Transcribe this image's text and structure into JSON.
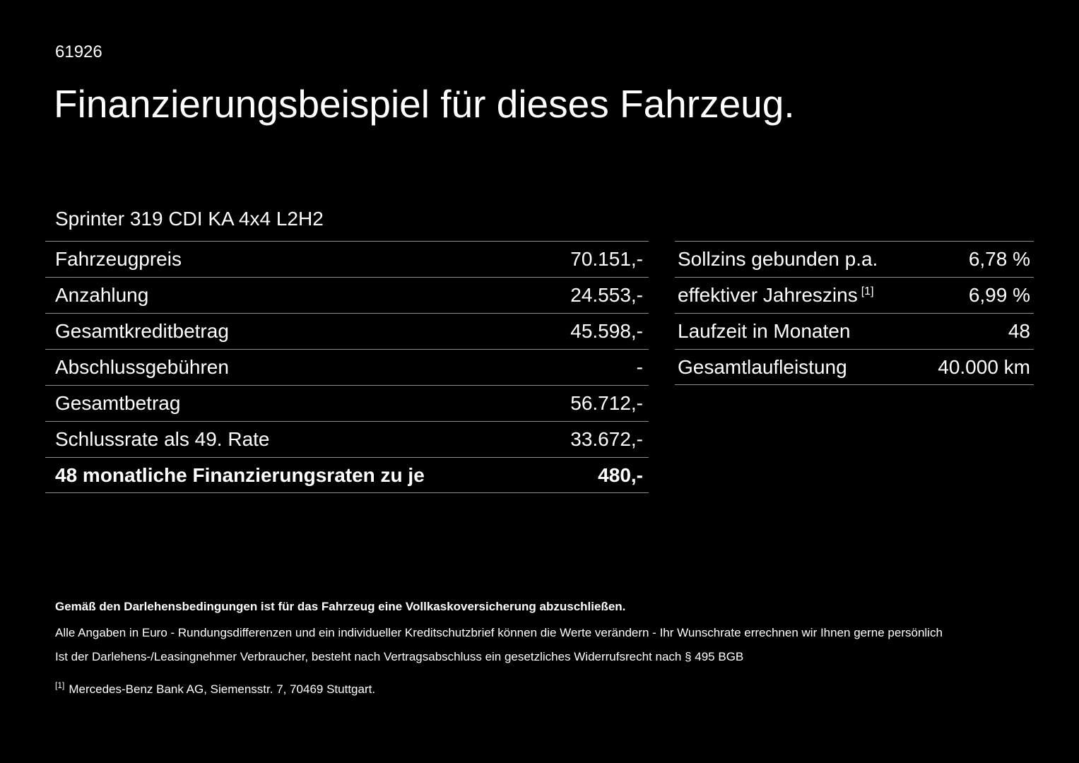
{
  "page": {
    "doc_id": "61926",
    "title": "Finanzierungsbeispiel für dieses Fahrzeug.",
    "subtitle": "Sprinter 319 CDI KA 4x4 L2H2"
  },
  "left_table": {
    "rows": [
      {
        "label": "Fahrzeugpreis",
        "value": "70.151,-"
      },
      {
        "label": "Anzahlung",
        "value": "24.553,-"
      },
      {
        "label": "Gesamtkreditbetrag",
        "value": "45.598,-"
      },
      {
        "label": "Abschlussgebühren",
        "value": "-"
      },
      {
        "label": "Gesamtbetrag",
        "value": "56.712,-"
      },
      {
        "label": "Schlussrate als 49. Rate",
        "value": "33.672,-"
      },
      {
        "label": "48 monatliche Finanzierungsraten zu je",
        "value": "480,-"
      }
    ]
  },
  "right_table": {
    "rows": [
      {
        "label": "Sollzins gebunden p.a.",
        "sup": "",
        "value": "6,78 %"
      },
      {
        "label": "effektiver Jahreszins",
        "sup": "[1]",
        "value": "6,99 %"
      },
      {
        "label": "Laufzeit in Monaten",
        "sup": "",
        "value": "48"
      },
      {
        "label": "Gesamtlaufleistung",
        "sup": "",
        "value": "40.000 km"
      }
    ]
  },
  "footer": {
    "bold_note": "Gemäß den Darlehensbedingungen ist für das Fahrzeug eine Vollkaskoversicherung abzuschließen.",
    "note1": "Alle Angaben in Euro - Rundungsdifferenzen und ein individueller Kreditschutzbrief können die Werte verändern - Ihr Wunschrate errechnen wir Ihnen gerne persönlich",
    "note2": "Ist der Darlehens-/Leasingnehmer Verbraucher, besteht nach Vertragsabschluss ein gesetzliches Widerrufsrecht nach § 495 BGB",
    "footnote_marker": "[1]",
    "footnote_text": "Mercedes-Benz Bank AG, Siemensstr. 7, 70469 Stuttgart."
  },
  "colors": {
    "background": "#000000",
    "text": "#ffffff",
    "divider": "#8e8e8e"
  }
}
